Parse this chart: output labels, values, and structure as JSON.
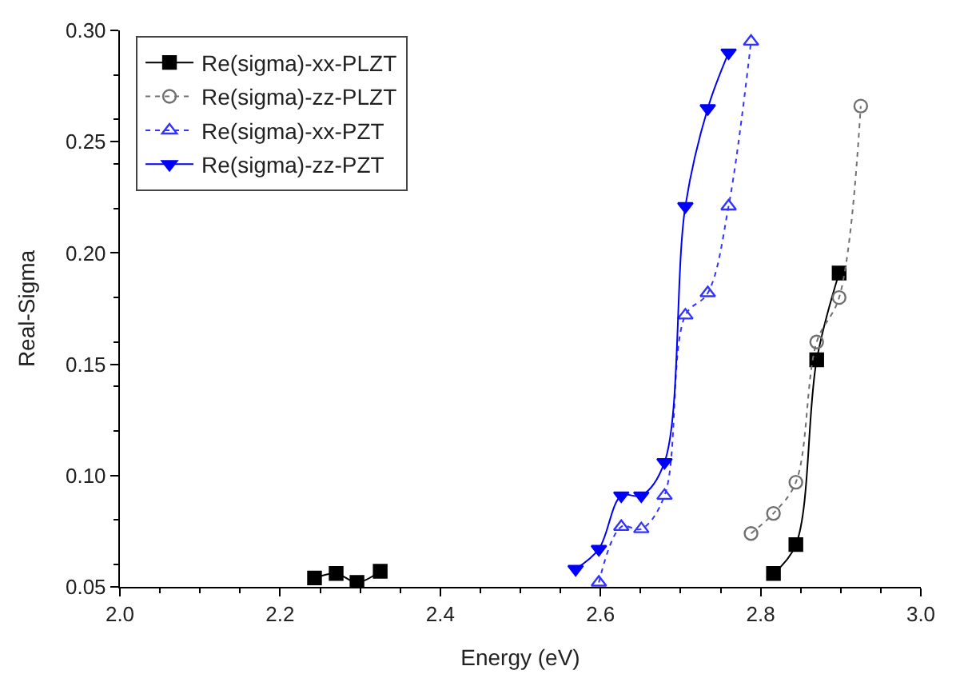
{
  "chart_data": {
    "type": "line",
    "xlabel": "Energy (eV)",
    "ylabel": "Real-Sigma",
    "xlim": [
      2.0,
      3.0
    ],
    "ylim": [
      0.05,
      0.3
    ],
    "xticks": [
      {
        "value": 2.0,
        "label": "2.0"
      },
      {
        "value": 2.2,
        "label": "2.2"
      },
      {
        "value": 2.4,
        "label": "2.4"
      },
      {
        "value": 2.6,
        "label": "2.6"
      },
      {
        "value": 2.8,
        "label": "2.8"
      },
      {
        "value": 3.0,
        "label": "3.0"
      }
    ],
    "yticks": [
      {
        "value": 0.05,
        "label": "0.05"
      },
      {
        "value": 0.1,
        "label": "0.10"
      },
      {
        "value": 0.15,
        "label": "0.15"
      },
      {
        "value": 0.2,
        "label": "0.20"
      },
      {
        "value": 0.25,
        "label": "0.25"
      },
      {
        "value": 0.3,
        "label": "0.30"
      }
    ],
    "legend": "top left",
    "series": [
      {
        "name": "Re(sigma)-xx-PLZT",
        "color": "#000000",
        "marker": "square",
        "line_style": "solid",
        "x": [
          2.243,
          2.27,
          2.296,
          2.325,
          2.5,
          2.816,
          2.844,
          2.87,
          2.898
        ],
        "values": [
          0.054,
          0.056,
          0.052,
          0.057,
          null,
          0.056,
          0.069,
          0.152,
          0.191
        ]
      },
      {
        "name": "Re(sigma)-zz-PLZT",
        "color": "#707070",
        "marker": "circle-open",
        "line_style": "dotted",
        "x": [
          2.788,
          2.816,
          2.844,
          2.87,
          2.898,
          2.925
        ],
        "values": [
          0.074,
          0.083,
          0.097,
          0.16,
          0.18,
          0.266
        ]
      },
      {
        "name": "Re(sigma)-xx-PZT",
        "color": "#3333ff",
        "marker": "triangle-up-open",
        "line_style": "dotted",
        "x": [
          2.598,
          2.626,
          2.651,
          2.68,
          2.706,
          2.734,
          2.76,
          2.788
        ],
        "values": [
          0.052,
          0.077,
          0.076,
          0.091,
          0.172,
          0.182,
          0.221,
          0.295
        ]
      },
      {
        "name": "Re(sigma)-zz-PZT",
        "color": "#0000ff",
        "marker": "triangle-down",
        "line_style": "solid",
        "x": [
          2.569,
          2.598,
          2.626,
          2.651,
          2.68,
          2.706,
          2.734,
          2.76
        ],
        "values": [
          0.058,
          0.067,
          0.091,
          0.091,
          0.106,
          0.221,
          0.265,
          0.29
        ]
      }
    ]
  }
}
